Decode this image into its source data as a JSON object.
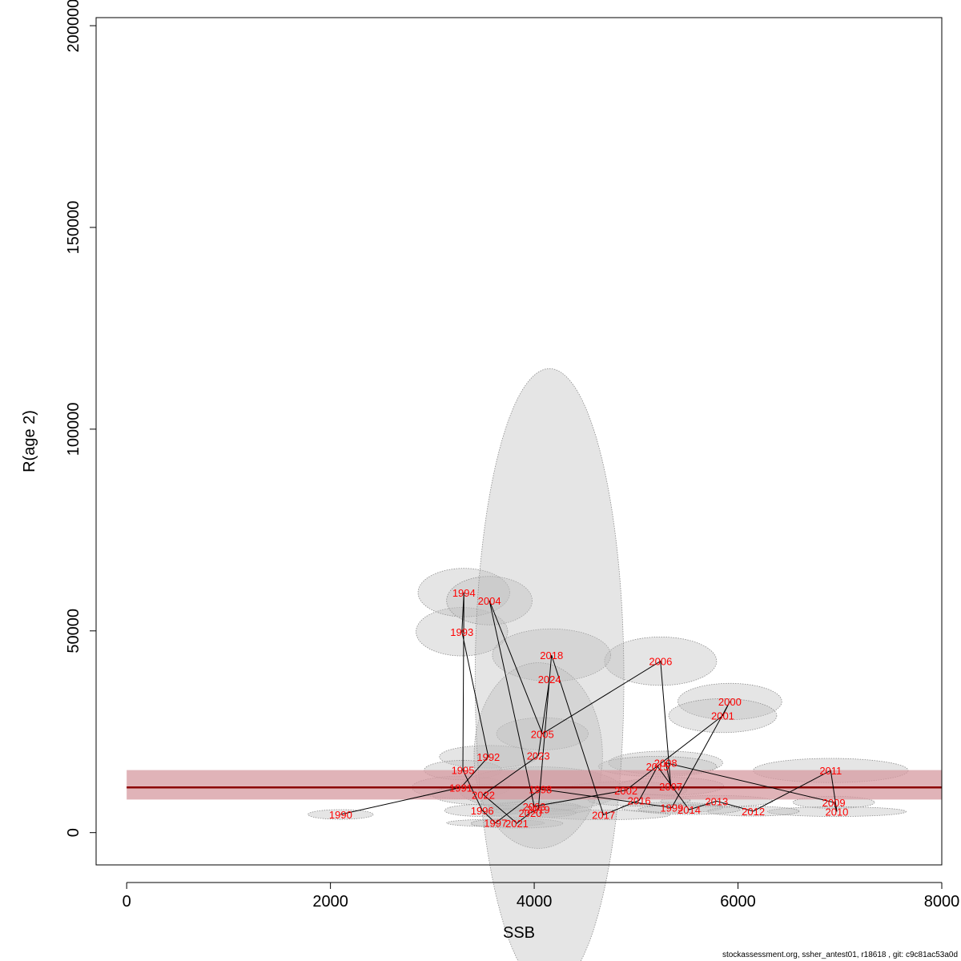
{
  "footer": "stockassessment.org, ssher_antest01, r18618 , git: c9c81ac53a0d",
  "colors": {
    "point_label": "#ff0000",
    "ellipse_fill": "#bebebe",
    "ellipse_stroke": "#8c8c8c",
    "band_fill": "#d59aa0",
    "band_line": "#8b0000",
    "axis": "#000000"
  },
  "chart_data": {
    "type": "scatter",
    "title": "",
    "xlabel": "SSB",
    "ylabel": "R(age 2)",
    "xlim": [
      -300,
      8000
    ],
    "ylim": [
      -8000,
      202000
    ],
    "xticks": [
      0,
      2000,
      4000,
      6000,
      8000
    ],
    "yticks": [
      0,
      50000,
      100000,
      150000,
      200000
    ],
    "grid": false,
    "legend": "none",
    "reference_line": {
      "y": 11200,
      "lower": 8200,
      "upper": 15500,
      "xmin": 0,
      "xmax": 8000
    },
    "points": [
      {
        "label": "1990",
        "x": 2100,
        "y": 4500,
        "sx": 320,
        "sy": 1200
      },
      {
        "label": "1991",
        "x": 3280,
        "y": 11200,
        "sx": 480,
        "sy": 2800
      },
      {
        "label": "1992",
        "x": 3550,
        "y": 18800,
        "sx": 480,
        "sy": 2800
      },
      {
        "label": "1993",
        "x": 3290,
        "y": 49800,
        "sx": 450,
        "sy": 6000
      },
      {
        "label": "1994",
        "x": 3310,
        "y": 59500,
        "sx": 450,
        "sy": 6000
      },
      {
        "label": "1995",
        "x": 3300,
        "y": 15500,
        "sx": 380,
        "sy": 2400
      },
      {
        "label": "1996",
        "x": 3490,
        "y": 5500,
        "sx": 370,
        "sy": 1500
      },
      {
        "label": "1997",
        "x": 3620,
        "y": 2400,
        "sx": 480,
        "sy": 900
      },
      {
        "label": "1998",
        "x": 4060,
        "y": 10800,
        "sx": 800,
        "sy": 5500
      },
      {
        "label": "1999",
        "x": 5350,
        "y": 6200,
        "sx": 500,
        "sy": 1300
      },
      {
        "label": "2000",
        "x": 5920,
        "y": 32500,
        "sx": 510,
        "sy": 4500
      },
      {
        "label": "2001",
        "x": 5850,
        "y": 29000,
        "sx": 530,
        "sy": 4200
      },
      {
        "label": "2002",
        "x": 4900,
        "y": 10500,
        "sx": 600,
        "sy": 2200
      },
      {
        "label": "2003",
        "x": 4000,
        "y": 6500,
        "sx": 450,
        "sy": 1200
      },
      {
        "label": "2004",
        "x": 3560,
        "y": 57500,
        "sx": 420,
        "sy": 6000
      },
      {
        "label": "2005",
        "x": 4080,
        "y": 24500,
        "sx": 450,
        "sy": 4000
      },
      {
        "label": "2006",
        "x": 5240,
        "y": 42500,
        "sx": 550,
        "sy": 6000
      },
      {
        "label": "2007",
        "x": 5340,
        "y": 11500,
        "sx": 520,
        "sy": 2200
      },
      {
        "label": "2008",
        "x": 5290,
        "y": 17300,
        "sx": 560,
        "sy": 2900
      },
      {
        "label": "2009",
        "x": 6940,
        "y": 7500,
        "sx": 400,
        "sy": 1500
      },
      {
        "label": "2010",
        "x": 6970,
        "y": 5200,
        "sx": 680,
        "sy": 1200
      },
      {
        "label": "2011",
        "x": 6910,
        "y": 15400,
        "sx": 760,
        "sy": 3000
      },
      {
        "label": "2012",
        "x": 6150,
        "y": 5300,
        "sx": 450,
        "sy": 1200
      },
      {
        "label": "2013",
        "x": 5790,
        "y": 7800,
        "sx": 550,
        "sy": 1400
      },
      {
        "label": "2014",
        "x": 5520,
        "y": 5700,
        "sx": 500,
        "sy": 1200
      },
      {
        "label": "2015",
        "x": 5210,
        "y": 16400,
        "sx": 580,
        "sy": 2500
      },
      {
        "label": "2016",
        "x": 5030,
        "y": 8000,
        "sx": 500,
        "sy": 1400
      },
      {
        "label": "2017",
        "x": 4680,
        "y": 4400,
        "sx": 650,
        "sy": 1200
      },
      {
        "label": "2018",
        "x": 4170,
        "y": 44000,
        "sx": 580,
        "sy": 6500
      },
      {
        "label": "2019",
        "x": 4040,
        "y": 5800,
        "sx": 500,
        "sy": 1300
      },
      {
        "label": "2020",
        "x": 3960,
        "y": 4900,
        "sx": 450,
        "sy": 1200
      },
      {
        "label": "2021",
        "x": 3830,
        "y": 2300,
        "sx": 450,
        "sy": 1200
      },
      {
        "label": "2022",
        "x": 3500,
        "y": 9400,
        "sx": 500,
        "sy": 2500
      },
      {
        "label": "2023",
        "x": 4040,
        "y": 19100,
        "sx": 630,
        "sy": 23000
      },
      {
        "label": "2024",
        "x": 4150,
        "y": 38000,
        "sx": 730,
        "sy": 77000
      }
    ]
  }
}
